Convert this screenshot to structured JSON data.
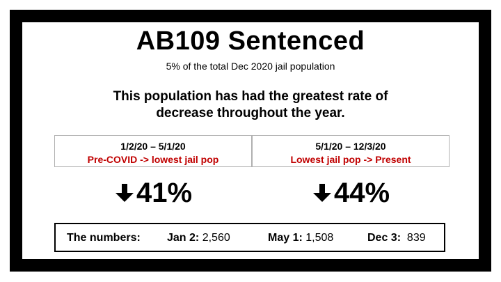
{
  "title": "AB109 Sentenced",
  "subtitle": "5% of the total Dec 2020 jail population",
  "description": "This population has had the greatest rate of decrease throughout the year.",
  "periods": [
    {
      "range": "1/2/20 – 5/1/20",
      "label": "Pre-COVID -> lowest jail pop",
      "change": "41%",
      "icon": "arrow-down-icon"
    },
    {
      "range": "5/1/20 – 12/3/20",
      "label": "Lowest jail pop -> Present",
      "change": "44%",
      "icon": "arrow-down-icon"
    }
  ],
  "numbers": {
    "heading": "The numbers:",
    "items": [
      {
        "label": "Jan 2:",
        "value": "2,560"
      },
      {
        "label": "May 1:",
        "value": "1,508"
      },
      {
        "label": "Dec 3:",
        "value": "839"
      }
    ]
  },
  "colors": {
    "accent": "#c00000",
    "border": "#000000"
  }
}
